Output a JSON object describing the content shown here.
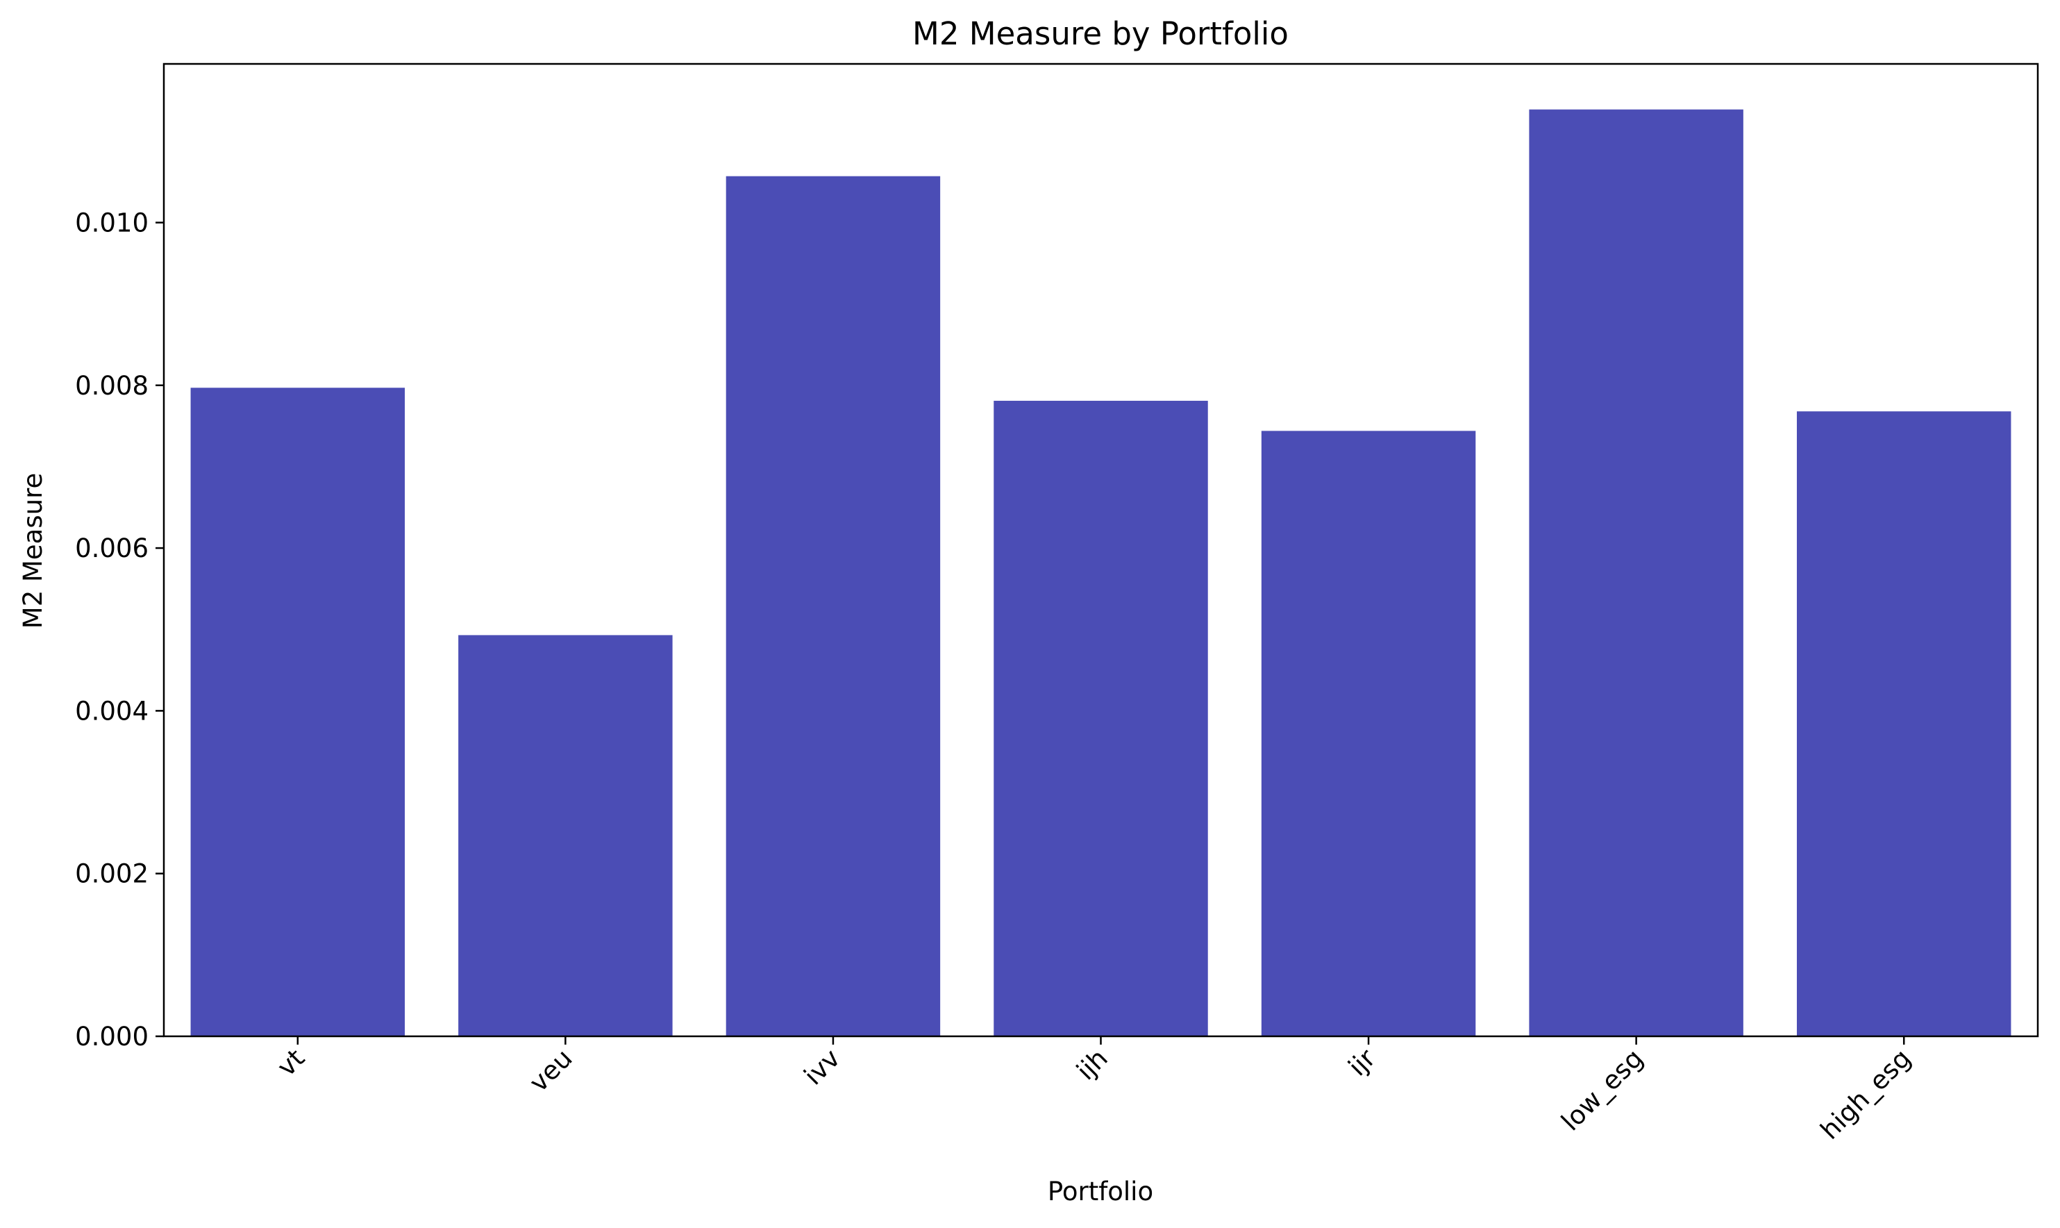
{
  "chart_data": {
    "type": "bar",
    "title": "M2 Measure by Portfolio",
    "xlabel": "Portfolio",
    "ylabel": "M2 Measure",
    "categories": [
      "vt",
      "veu",
      "ivv",
      "ijh",
      "ijr",
      "low_esg",
      "high_esg"
    ],
    "values": [
      0.00797,
      0.00493,
      0.01057,
      0.00781,
      0.00744,
      0.01139,
      0.00768
    ],
    "ylim": [
      0,
      0.01195
    ],
    "yticks": [
      0.0,
      0.002,
      0.004,
      0.006,
      0.008,
      0.01
    ],
    "ytick_labels": [
      "0.000",
      "0.002",
      "0.004",
      "0.006",
      "0.008",
      "0.010"
    ],
    "xtick_rotation_deg": 45,
    "grid": false,
    "legend": "none",
    "bar_color": "#4b4db5",
    "axis_color": "#000000"
  }
}
